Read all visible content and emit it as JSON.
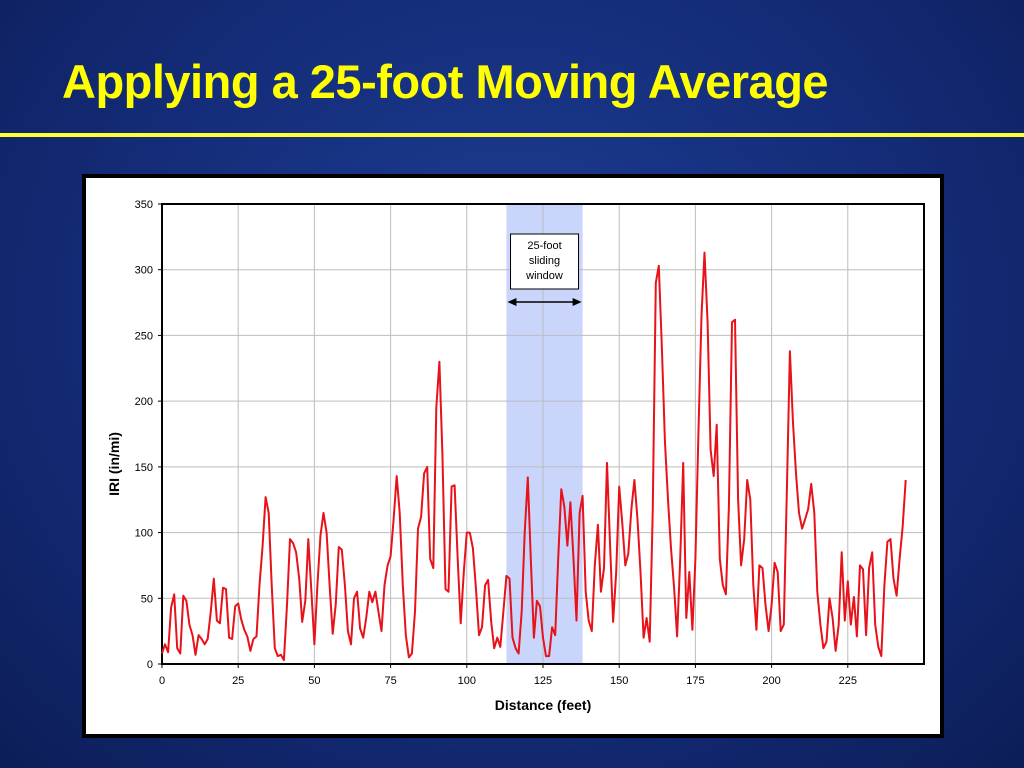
{
  "slide": {
    "title": "Applying a 25-foot Moving Average"
  },
  "colors": {
    "background": "#142c78",
    "title": "#ffff00",
    "rule": "#ffff33",
    "series": "#e8121b",
    "window_band": "#c9d5fb"
  },
  "chart_data": {
    "type": "line",
    "title": "",
    "xlabel": "Distance (feet)",
    "ylabel": "IRI (in/mi)",
    "xlim": [
      0,
      250
    ],
    "ylim": [
      0,
      350
    ],
    "x_ticks": [
      0,
      25,
      50,
      75,
      100,
      125,
      150,
      175,
      200,
      225
    ],
    "y_ticks": [
      0,
      50,
      100,
      150,
      200,
      250,
      300,
      350
    ],
    "grid": true,
    "legend": "none",
    "x_step": 1,
    "series": [
      {
        "color": "#e8121b",
        "values": [
          8,
          15,
          9,
          43,
          53,
          12,
          8,
          52,
          48,
          30,
          22,
          7,
          22,
          19,
          15,
          19,
          40,
          65,
          33,
          31,
          58,
          57,
          20,
          19,
          44,
          46,
          34,
          26,
          21,
          10,
          19,
          21,
          60,
          90,
          127,
          115,
          60,
          12,
          6,
          7,
          3,
          45,
          95,
          92,
          85,
          65,
          32,
          48,
          95,
          55,
          15,
          60,
          98,
          115,
          100,
          60,
          23,
          45,
          89,
          87,
          60,
          25,
          15,
          50,
          55,
          27,
          20,
          35,
          55,
          47,
          55,
          40,
          25,
          60,
          75,
          82,
          110,
          143,
          115,
          60,
          22,
          5,
          8,
          40,
          103,
          112,
          145,
          150,
          80,
          73,
          195,
          230,
          160,
          57,
          55,
          135,
          136,
          80,
          31,
          70,
          100,
          100,
          88,
          58,
          22,
          28,
          60,
          64,
          32,
          12,
          20,
          13,
          40,
          67,
          65,
          20,
          12,
          8,
          40,
          100,
          142,
          80,
          20,
          48,
          44,
          20,
          6,
          6,
          28,
          22,
          80,
          133,
          120,
          90,
          123,
          80,
          33,
          115,
          128,
          55,
          33,
          25,
          75,
          106,
          55,
          73,
          153,
          90,
          32,
          70,
          135,
          108,
          75,
          84,
          118,
          140,
          110,
          70,
          20,
          35,
          17,
          115,
          290,
          303,
          240,
          170,
          125,
          88,
          58,
          21,
          80,
          153,
          35,
          70,
          26,
          80,
          175,
          265,
          313,
          260,
          163,
          143,
          182,
          80,
          60,
          53,
          120,
          260,
          262,
          125,
          75,
          95,
          140,
          125,
          60,
          26,
          75,
          73,
          45,
          25,
          45,
          77,
          70,
          25,
          30,
          130,
          238,
          185,
          145,
          115,
          103,
          110,
          118,
          137,
          115,
          55,
          30,
          12,
          17,
          50,
          35,
          10,
          30,
          85,
          33,
          63,
          30,
          51,
          21,
          75,
          72,
          22,
          73,
          85,
          30,
          13,
          6,
          60,
          93,
          95,
          65,
          52,
          80,
          105,
          140
        ]
      }
    ],
    "annotation": {
      "label_lines": [
        "25-foot",
        "sliding",
        "window"
      ],
      "band_x": [
        113,
        138
      ]
    }
  }
}
